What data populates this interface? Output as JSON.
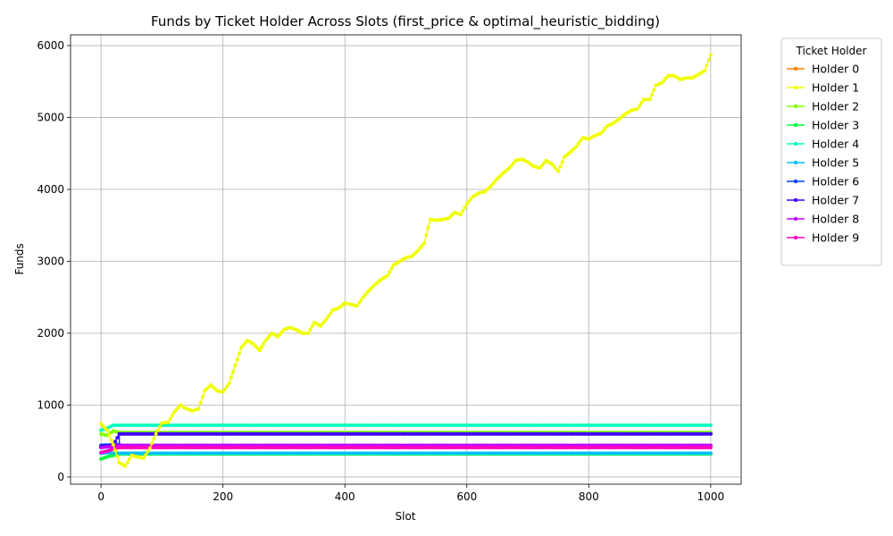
{
  "chart_data": {
    "type": "line",
    "title": "Funds by Ticket Holder Across Slots (first_price & optimal_heuristic_bidding)",
    "xlabel": "Slot",
    "ylabel": "Funds",
    "xlim": [
      -50,
      1050
    ],
    "ylim": [
      -100,
      6150
    ],
    "xticks": [
      0,
      200,
      400,
      600,
      800,
      1000
    ],
    "yticks": [
      0,
      1000,
      2000,
      3000,
      4000,
      5000,
      6000
    ],
    "grid": true,
    "legend": {
      "title": "Ticket Holder",
      "placement": "outside-right"
    },
    "series": [
      {
        "name": "Holder 0",
        "color": "#ff8000",
        "points": [
          [
            0,
            430
          ],
          [
            1000,
            430
          ]
        ]
      },
      {
        "name": "Holder 1",
        "color": "#f0ff00",
        "points": [
          [
            0,
            740
          ],
          [
            10,
            650
          ],
          [
            20,
            450
          ],
          [
            30,
            200
          ],
          [
            40,
            150
          ],
          [
            50,
            300
          ],
          [
            60,
            280
          ],
          [
            70,
            260
          ],
          [
            80,
            400
          ],
          [
            90,
            600
          ],
          [
            100,
            750
          ],
          [
            110,
            760
          ],
          [
            120,
            900
          ],
          [
            130,
            1000
          ],
          [
            140,
            950
          ],
          [
            150,
            920
          ],
          [
            160,
            950
          ],
          [
            170,
            1200
          ],
          [
            180,
            1280
          ],
          [
            190,
            1200
          ],
          [
            200,
            1180
          ],
          [
            210,
            1300
          ],
          [
            220,
            1550
          ],
          [
            230,
            1800
          ],
          [
            240,
            1900
          ],
          [
            250,
            1850
          ],
          [
            260,
            1760
          ],
          [
            270,
            1900
          ],
          [
            280,
            2000
          ],
          [
            290,
            1950
          ],
          [
            300,
            2050
          ],
          [
            310,
            2080
          ],
          [
            320,
            2050
          ],
          [
            330,
            2000
          ],
          [
            340,
            2000
          ],
          [
            350,
            2150
          ],
          [
            360,
            2100
          ],
          [
            370,
            2200
          ],
          [
            380,
            2320
          ],
          [
            390,
            2350
          ],
          [
            400,
            2420
          ],
          [
            410,
            2400
          ],
          [
            420,
            2380
          ],
          [
            430,
            2500
          ],
          [
            440,
            2600
          ],
          [
            450,
            2680
          ],
          [
            460,
            2750
          ],
          [
            470,
            2800
          ],
          [
            480,
            2950
          ],
          [
            490,
            3000
          ],
          [
            500,
            3050
          ],
          [
            510,
            3070
          ],
          [
            520,
            3150
          ],
          [
            530,
            3250
          ],
          [
            540,
            3580
          ],
          [
            550,
            3570
          ],
          [
            560,
            3580
          ],
          [
            570,
            3600
          ],
          [
            580,
            3680
          ],
          [
            590,
            3650
          ],
          [
            600,
            3800
          ],
          [
            610,
            3900
          ],
          [
            620,
            3950
          ],
          [
            630,
            3970
          ],
          [
            640,
            4050
          ],
          [
            650,
            4150
          ],
          [
            660,
            4230
          ],
          [
            670,
            4300
          ],
          [
            680,
            4400
          ],
          [
            690,
            4420
          ],
          [
            700,
            4380
          ],
          [
            710,
            4320
          ],
          [
            720,
            4300
          ],
          [
            730,
            4400
          ],
          [
            740,
            4350
          ],
          [
            750,
            4250
          ],
          [
            760,
            4450
          ],
          [
            770,
            4520
          ],
          [
            780,
            4600
          ],
          [
            790,
            4720
          ],
          [
            800,
            4700
          ],
          [
            810,
            4750
          ],
          [
            820,
            4780
          ],
          [
            830,
            4880
          ],
          [
            840,
            4920
          ],
          [
            850,
            4980
          ],
          [
            860,
            5050
          ],
          [
            870,
            5100
          ],
          [
            880,
            5120
          ],
          [
            890,
            5250
          ],
          [
            900,
            5250
          ],
          [
            910,
            5450
          ],
          [
            920,
            5480
          ],
          [
            930,
            5580
          ],
          [
            940,
            5580
          ],
          [
            950,
            5530
          ],
          [
            960,
            5550
          ],
          [
            970,
            5550
          ],
          [
            980,
            5600
          ],
          [
            990,
            5650
          ],
          [
            1000,
            5870
          ]
        ]
      },
      {
        "name": "Holder 2",
        "color": "#80ff00",
        "points": [
          [
            0,
            600
          ],
          [
            10,
            580
          ],
          [
            20,
            640
          ],
          [
            30,
            620
          ],
          [
            1000,
            620
          ]
        ]
      },
      {
        "name": "Holder 3",
        "color": "#00ff40",
        "points": [
          [
            0,
            250
          ],
          [
            10,
            280
          ],
          [
            20,
            300
          ],
          [
            30,
            320
          ],
          [
            1000,
            320
          ]
        ]
      },
      {
        "name": "Holder 4",
        "color": "#00ffbf",
        "points": [
          [
            0,
            650
          ],
          [
            10,
            680
          ],
          [
            20,
            720
          ],
          [
            1000,
            720
          ]
        ]
      },
      {
        "name": "Holder 5",
        "color": "#00bfff",
        "points": [
          [
            0,
            330
          ],
          [
            10,
            340
          ],
          [
            20,
            330
          ],
          [
            1000,
            330
          ]
        ]
      },
      {
        "name": "Holder 6",
        "color": "#0040ff",
        "points": [
          [
            0,
            440
          ],
          [
            30,
            450
          ],
          [
            30,
            600
          ],
          [
            1000,
            600
          ]
        ]
      },
      {
        "name": "Holder 7",
        "color": "#4000ff",
        "points": [
          [
            0,
            420
          ],
          [
            10,
            430
          ],
          [
            20,
            440
          ],
          [
            30,
            600
          ],
          [
            1000,
            600
          ]
        ]
      },
      {
        "name": "Holder 8",
        "color": "#bf00ff",
        "points": [
          [
            0,
            410
          ],
          [
            10,
            420
          ],
          [
            20,
            430
          ],
          [
            30,
            440
          ],
          [
            1000,
            440
          ]
        ]
      },
      {
        "name": "Holder 9",
        "color": "#ff00bf",
        "points": [
          [
            0,
            340
          ],
          [
            10,
            360
          ],
          [
            20,
            390
          ],
          [
            30,
            410
          ],
          [
            1000,
            410
          ]
        ]
      }
    ]
  }
}
